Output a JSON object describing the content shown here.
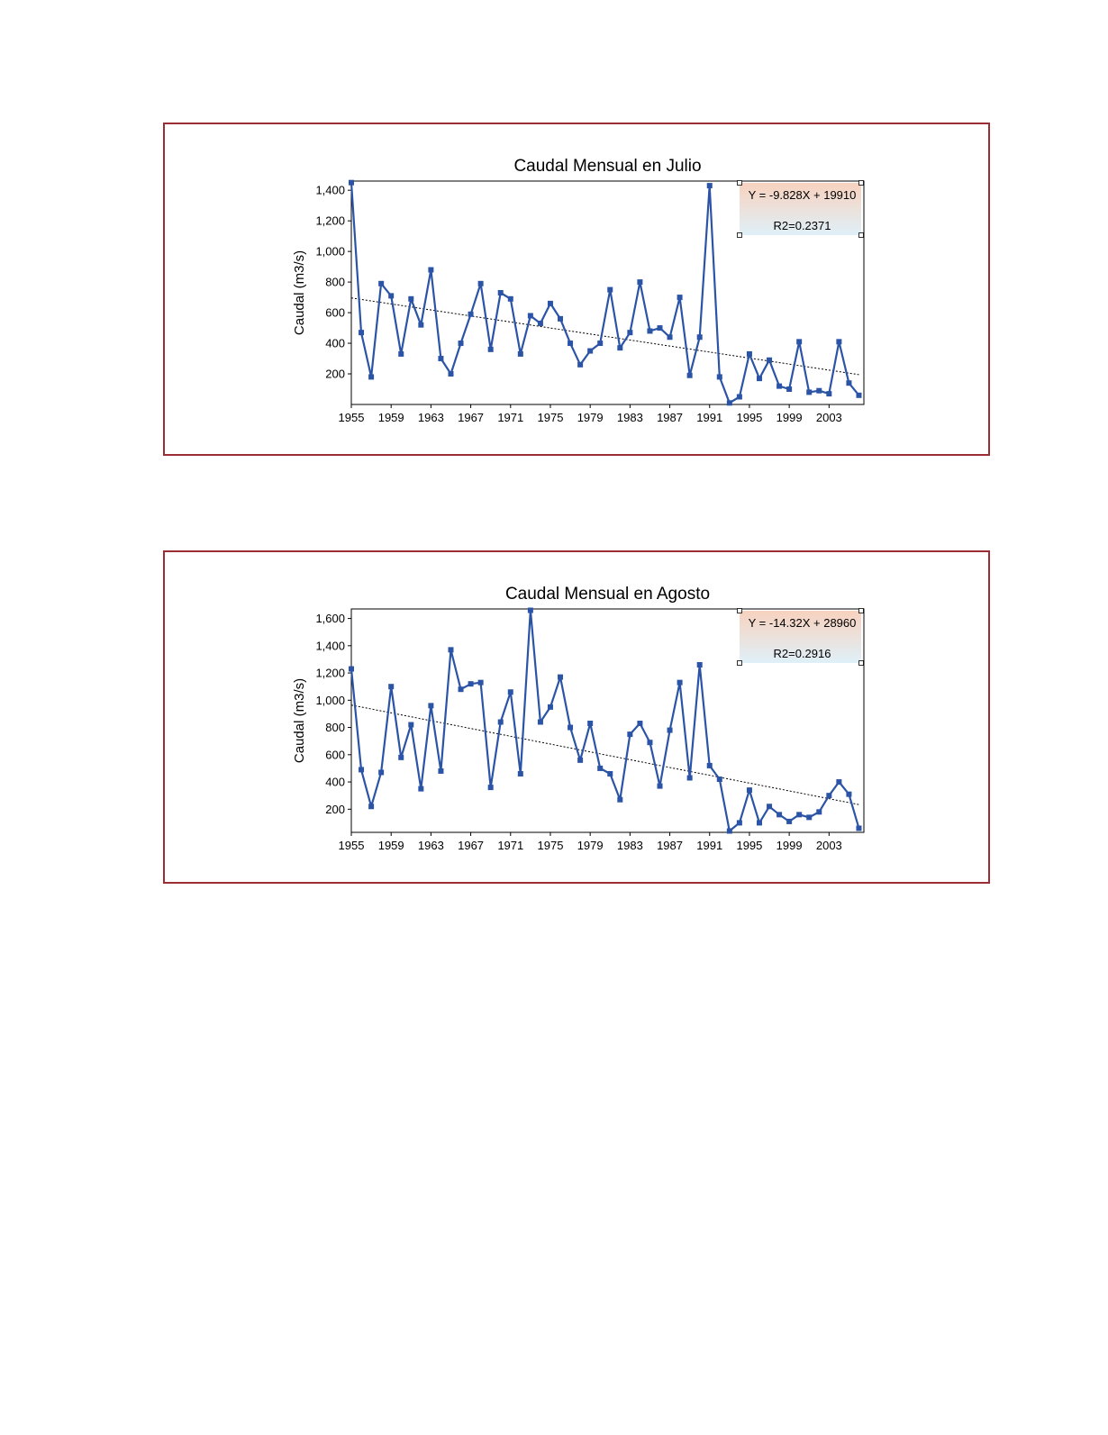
{
  "colors": {
    "frame_border": "#9b2d35",
    "series_line": "#2b54a6",
    "trend_line": "#000000",
    "box_top": "#f8d2bf",
    "box_bottom": "#dff0f8"
  },
  "chart_data": [
    {
      "type": "line",
      "title": "Caudal Mensual en Julio",
      "xlabel": "",
      "ylabel": "Caudal (m3/s)",
      "x_ticks": [
        "1955",
        "1959",
        "1963",
        "1967",
        "1971",
        "1975",
        "1979",
        "1983",
        "1987",
        "1991",
        "1995",
        "1999",
        "2003"
      ],
      "y_ticks": [
        "200",
        "400",
        "600",
        "800",
        "1,000",
        "1,200",
        "1,400"
      ],
      "xlim": [
        1955,
        2006.5
      ],
      "ylim": [
        0,
        1460
      ],
      "grid": false,
      "legend": "none",
      "x": [
        1955,
        1956,
        1957,
        1958,
        1959,
        1960,
        1961,
        1962,
        1963,
        1964,
        1965,
        1966,
        1967,
        1968,
        1969,
        1970,
        1971,
        1972,
        1973,
        1974,
        1975,
        1976,
        1977,
        1978,
        1979,
        1980,
        1981,
        1982,
        1983,
        1984,
        1985,
        1986,
        1987,
        1988,
        1989,
        1990,
        1991,
        1992,
        1993,
        1994,
        1995,
        1996,
        1997,
        1998,
        1999,
        2000,
        2001,
        2002,
        2003,
        2004,
        2005,
        2006
      ],
      "series": [
        {
          "values": [
            1450,
            470,
            180,
            790,
            710,
            330,
            690,
            520,
            880,
            300,
            200,
            400,
            590,
            790,
            360,
            730,
            690,
            330,
            580,
            530,
            660,
            560,
            400,
            260,
            350,
            400,
            750,
            370,
            470,
            800,
            480,
            500,
            440,
            700,
            190,
            440,
            1430,
            180,
            10,
            50,
            330,
            170,
            290,
            120,
            100,
            410,
            80,
            90,
            70,
            410,
            140,
            60
          ]
        }
      ],
      "trendline": {
        "slope": -9.828,
        "intercept": 19910,
        "equation_label": "Y = -9.828X + 19910",
        "r2_label": "R2=0.2371"
      }
    },
    {
      "type": "line",
      "title": "Caudal Mensual en Agosto",
      "xlabel": "",
      "ylabel": "Caudal (m3/s)",
      "x_ticks": [
        "1955",
        "1959",
        "1963",
        "1967",
        "1971",
        "1975",
        "1979",
        "1983",
        "1987",
        "1991",
        "1995",
        "1999",
        "2003"
      ],
      "y_ticks": [
        "200",
        "400",
        "600",
        "800",
        "1,000",
        "1,200",
        "1,400",
        "1,600"
      ],
      "xlim": [
        1955,
        2006.5
      ],
      "ylim": [
        30,
        1670
      ],
      "grid": false,
      "legend": "none",
      "x": [
        1955,
        1956,
        1957,
        1958,
        1959,
        1960,
        1961,
        1962,
        1963,
        1964,
        1965,
        1966,
        1967,
        1968,
        1969,
        1970,
        1971,
        1972,
        1973,
        1974,
        1975,
        1976,
        1977,
        1978,
        1979,
        1980,
        1981,
        1982,
        1983,
        1984,
        1985,
        1986,
        1987,
        1988,
        1989,
        1990,
        1991,
        1992,
        1993,
        1994,
        1995,
        1996,
        1997,
        1998,
        1999,
        2000,
        2001,
        2002,
        2003,
        2004,
        2005,
        2006
      ],
      "series": [
        {
          "values": [
            1230,
            490,
            220,
            470,
            1100,
            580,
            820,
            350,
            960,
            480,
            1370,
            1080,
            1120,
            1130,
            360,
            840,
            1060,
            460,
            1660,
            840,
            950,
            1170,
            800,
            560,
            830,
            500,
            460,
            270,
            750,
            830,
            690,
            370,
            780,
            1130,
            430,
            1260,
            520,
            420,
            40,
            100,
            340,
            100,
            220,
            160,
            110,
            160,
            140,
            180,
            300,
            400,
            310,
            60
          ]
        }
      ],
      "trendline": {
        "slope": -14.32,
        "intercept": 28960,
        "equation_label": "Y = -14.32X + 28960",
        "r2_label": "R2=0.2916"
      }
    }
  ]
}
